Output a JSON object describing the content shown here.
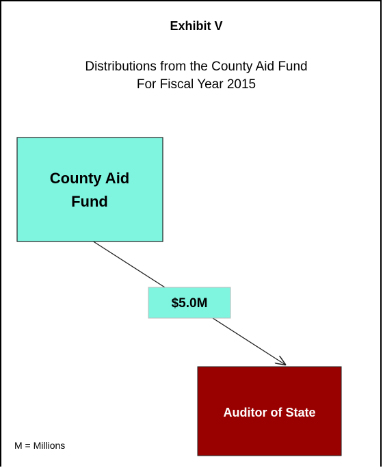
{
  "header": {
    "title": "Exhibit V",
    "subtitle_lines": [
      "Distributions from the County Aid Fund",
      "For Fiscal Year 2015"
    ]
  },
  "nodes": [
    {
      "label_lines": [
        "County Aid",
        "Fund"
      ]
    },
    {
      "label_lines": [
        "Auditor of State"
      ]
    }
  ],
  "edges": [
    {
      "label": "$5.0M"
    }
  ],
  "footnote": "M = Millions"
}
